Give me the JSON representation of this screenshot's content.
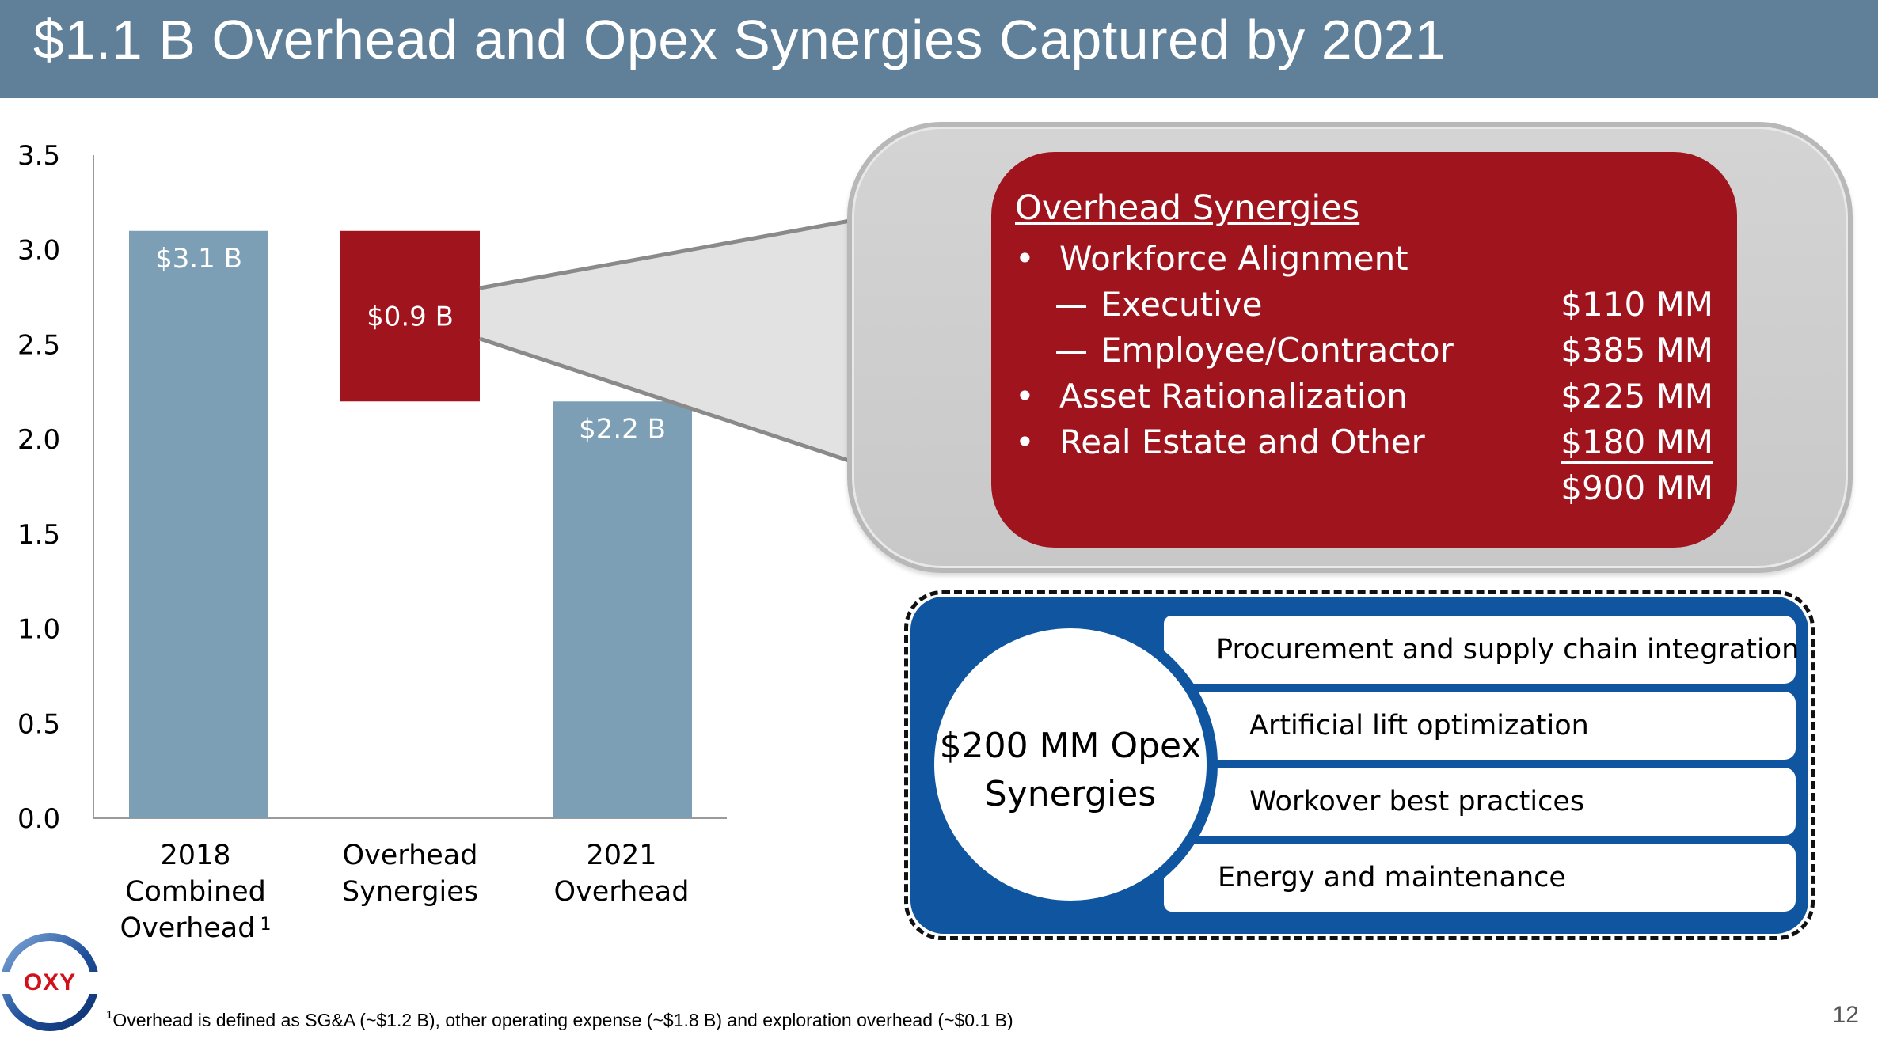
{
  "title": "$1.1 B Overhead and Opex Synergies Captured by 2021",
  "colors": {
    "title_bar": "#5f8098",
    "bar": "#7c9fb5",
    "synergy_bar": "#a0141e",
    "callout_red": "#a0141e",
    "opex_blue": "#0f55a0"
  },
  "chart_data": {
    "type": "bar",
    "subtype": "waterfall",
    "categories": [
      "2018 Combined Overhead",
      "Overhead Synergies",
      "2021 Overhead"
    ],
    "category_lines": [
      [
        "2018",
        "Combined",
        "Overhead"
      ],
      [
        "Overhead",
        "Synergies"
      ],
      [
        "2021",
        "Overhead"
      ]
    ],
    "category_superscripts": [
      "1",
      "",
      ""
    ],
    "bars": [
      {
        "base": 0.0,
        "top": 3.1,
        "label": "$3.1 B",
        "color": "#7c9fb5"
      },
      {
        "base": 2.2,
        "top": 3.1,
        "label": "$0.9 B",
        "color": "#a0141e"
      },
      {
        "base": 0.0,
        "top": 2.2,
        "label": "$2.2 B",
        "color": "#7c9fb5"
      }
    ],
    "ylim": [
      0,
      3.5
    ],
    "yticks": [
      "0.0",
      "0.5",
      "1.0",
      "1.5",
      "2.0",
      "2.5",
      "3.0",
      "3.5"
    ],
    "xlabel": "",
    "ylabel": "",
    "grid": false
  },
  "overhead_synergies": {
    "heading": "Overhead Synergies",
    "rows": [
      {
        "marker": "•",
        "label": "Workforce Alignment",
        "amount": ""
      },
      {
        "marker": "—",
        "label": "Executive",
        "amount": "$110 MM"
      },
      {
        "marker": "—",
        "label": "Employee/Contractor",
        "amount": "$385 MM"
      },
      {
        "marker": "•",
        "label": "Asset Rationalization",
        "amount": "$225 MM"
      },
      {
        "marker": "•",
        "label": "Real Estate and Other",
        "amount": "$180 MM"
      }
    ],
    "total": "$900 MM"
  },
  "opex_synergies": {
    "circle_line1": "$200 MM Opex",
    "circle_line2": "Synergies",
    "items": [
      "Procurement and supply chain integration",
      "Artificial lift optimization",
      "Workover best practices",
      "Energy and maintenance"
    ]
  },
  "logo": {
    "text": "OXY",
    "icon": "oxy-logo-icon"
  },
  "footnote": {
    "marker": "1",
    "text": "Overhead is defined as SG&A (~$1.2 B), other operating expense (~$1.8 B) and exploration overhead (~$0.1 B)"
  },
  "page_number": "12"
}
